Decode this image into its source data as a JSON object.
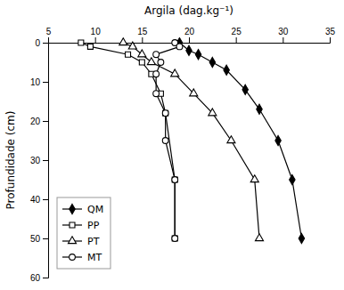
{
  "chart_data": {
    "type": "line",
    "xlabel": "Argila (dag.kg⁻¹)",
    "ylabel": "Profundidade (cm)",
    "xlim": [
      5,
      35
    ],
    "ylim": [
      60,
      0
    ],
    "xticks": [
      5,
      10,
      15,
      20,
      25,
      30,
      35
    ],
    "yticks": [
      0,
      10,
      20,
      30,
      40,
      50,
      60
    ],
    "legend": "lower left",
    "grid": false,
    "series": [
      {
        "name": "QM",
        "color": "black",
        "marker": "diamond",
        "line_style": "solid",
        "x": [
          19.0,
          20.0,
          21.0,
          22.5,
          24.0,
          26.0,
          27.5,
          29.5,
          31.0,
          32.0
        ],
        "values": [
          0,
          2,
          3,
          5,
          7,
          12,
          17,
          25,
          35,
          50
        ]
      },
      {
        "name": "PP",
        "color": "black",
        "marker": "square-open",
        "line_style": "solid",
        "x": [
          8.5,
          9.5,
          13.5,
          15.0,
          16.0,
          17.0,
          17.5,
          18.5,
          18.5
        ],
        "values": [
          0,
          1,
          3,
          5,
          8,
          13,
          18,
          35,
          50
        ]
      },
      {
        "name": "PT",
        "color": "black",
        "marker": "triangle-open",
        "line_style": "solid",
        "x": [
          13.0,
          14.0,
          15.0,
          16.0,
          18.5,
          20.5,
          22.5,
          24.5,
          27.0,
          27.5
        ],
        "values": [
          0,
          1,
          3,
          5,
          8,
          13,
          18,
          25,
          35,
          50
        ]
      },
      {
        "name": "MT",
        "color": "black",
        "marker": "circle-open",
        "line_style": "solid",
        "x": [
          18.5,
          19.0,
          16.5,
          17.0,
          16.5,
          16.5,
          17.5,
          17.5,
          18.5,
          18.5
        ],
        "values": [
          0,
          1,
          3,
          5,
          8,
          13,
          18,
          25,
          35,
          50
        ]
      }
    ]
  }
}
